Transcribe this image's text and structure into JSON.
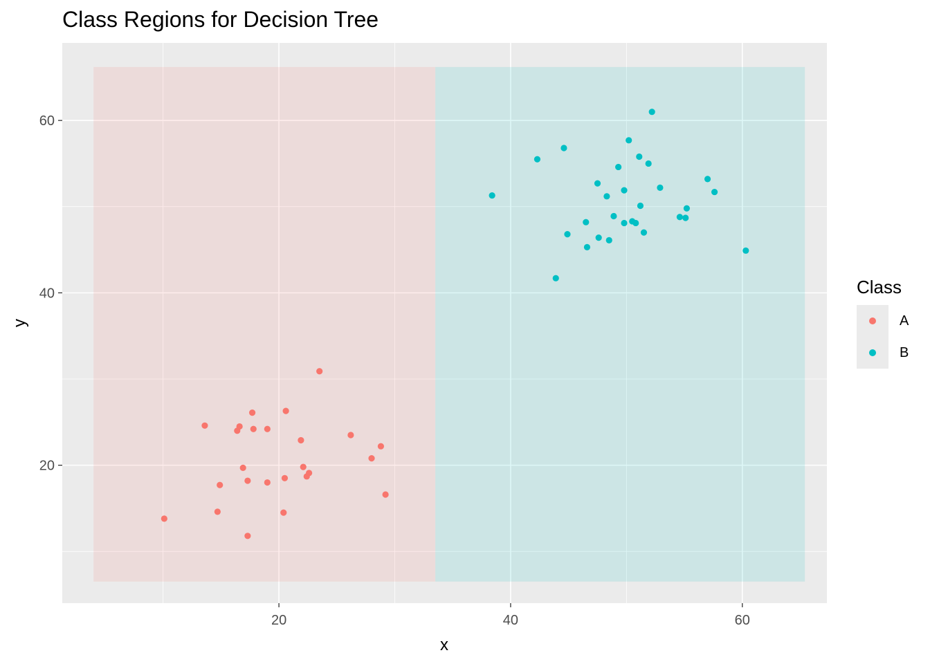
{
  "chart_data": {
    "type": "scatter",
    "title": "Class Regions for Decision Tree",
    "xlabel": "x",
    "ylabel": "y",
    "xlim": [
      1.3,
      67.3
    ],
    "ylim": [
      4.0,
      69.0
    ],
    "xticks": [
      20,
      40,
      60
    ],
    "yticks": [
      20,
      40,
      60
    ],
    "grid": true,
    "legend": {
      "title": "Class",
      "position": "right",
      "entries": [
        {
          "label": "A",
          "color": "#F8766D"
        },
        {
          "label": "B",
          "color": "#00BFC4"
        }
      ]
    },
    "regions": [
      {
        "class": "A",
        "x_range": [
          4.0,
          33.5
        ],
        "y_range": [
          6.5,
          66.2
        ],
        "color": "#F8766D"
      },
      {
        "class": "B",
        "x_range": [
          33.5,
          65.4
        ],
        "y_range": [
          6.5,
          66.2
        ],
        "color": "#00BFC4"
      }
    ],
    "series": [
      {
        "name": "A",
        "color": "#F8766D",
        "points": [
          [
            23.5,
            30.9
          ],
          [
            20.6,
            26.3
          ],
          [
            17.7,
            26.1
          ],
          [
            13.6,
            24.6
          ],
          [
            16.6,
            24.5
          ],
          [
            16.4,
            24.0
          ],
          [
            17.8,
            24.2
          ],
          [
            19.0,
            24.2
          ],
          [
            26.2,
            23.5
          ],
          [
            21.9,
            22.9
          ],
          [
            28.8,
            22.2
          ],
          [
            28.0,
            20.8
          ],
          [
            16.9,
            19.7
          ],
          [
            22.1,
            19.8
          ],
          [
            22.6,
            19.1
          ],
          [
            22.4,
            18.7
          ],
          [
            20.5,
            18.5
          ],
          [
            17.3,
            18.2
          ],
          [
            19.0,
            18.0
          ],
          [
            14.9,
            17.7
          ],
          [
            29.2,
            16.6
          ],
          [
            14.7,
            14.6
          ],
          [
            20.4,
            14.5
          ],
          [
            10.1,
            13.8
          ],
          [
            17.3,
            11.8
          ]
        ]
      },
      {
        "name": "B",
        "color": "#00BFC4",
        "points": [
          [
            52.2,
            61.0
          ],
          [
            50.2,
            57.7
          ],
          [
            44.6,
            56.8
          ],
          [
            51.1,
            55.8
          ],
          [
            42.3,
            55.5
          ],
          [
            51.9,
            55.0
          ],
          [
            49.3,
            54.6
          ],
          [
            57.0,
            53.2
          ],
          [
            47.5,
            52.7
          ],
          [
            52.9,
            52.2
          ],
          [
            49.8,
            51.9
          ],
          [
            57.6,
            51.7
          ],
          [
            38.4,
            51.3
          ],
          [
            48.3,
            51.2
          ],
          [
            51.2,
            50.1
          ],
          [
            55.2,
            49.8
          ],
          [
            48.9,
            48.9
          ],
          [
            54.6,
            48.8
          ],
          [
            55.1,
            48.7
          ],
          [
            46.5,
            48.2
          ],
          [
            50.5,
            48.3
          ],
          [
            50.8,
            48.1
          ],
          [
            49.8,
            48.1
          ],
          [
            44.9,
            46.8
          ],
          [
            51.5,
            47.0
          ],
          [
            47.6,
            46.4
          ],
          [
            48.5,
            46.1
          ],
          [
            46.6,
            45.3
          ],
          [
            60.3,
            44.9
          ],
          [
            43.9,
            41.7
          ]
        ]
      }
    ]
  }
}
